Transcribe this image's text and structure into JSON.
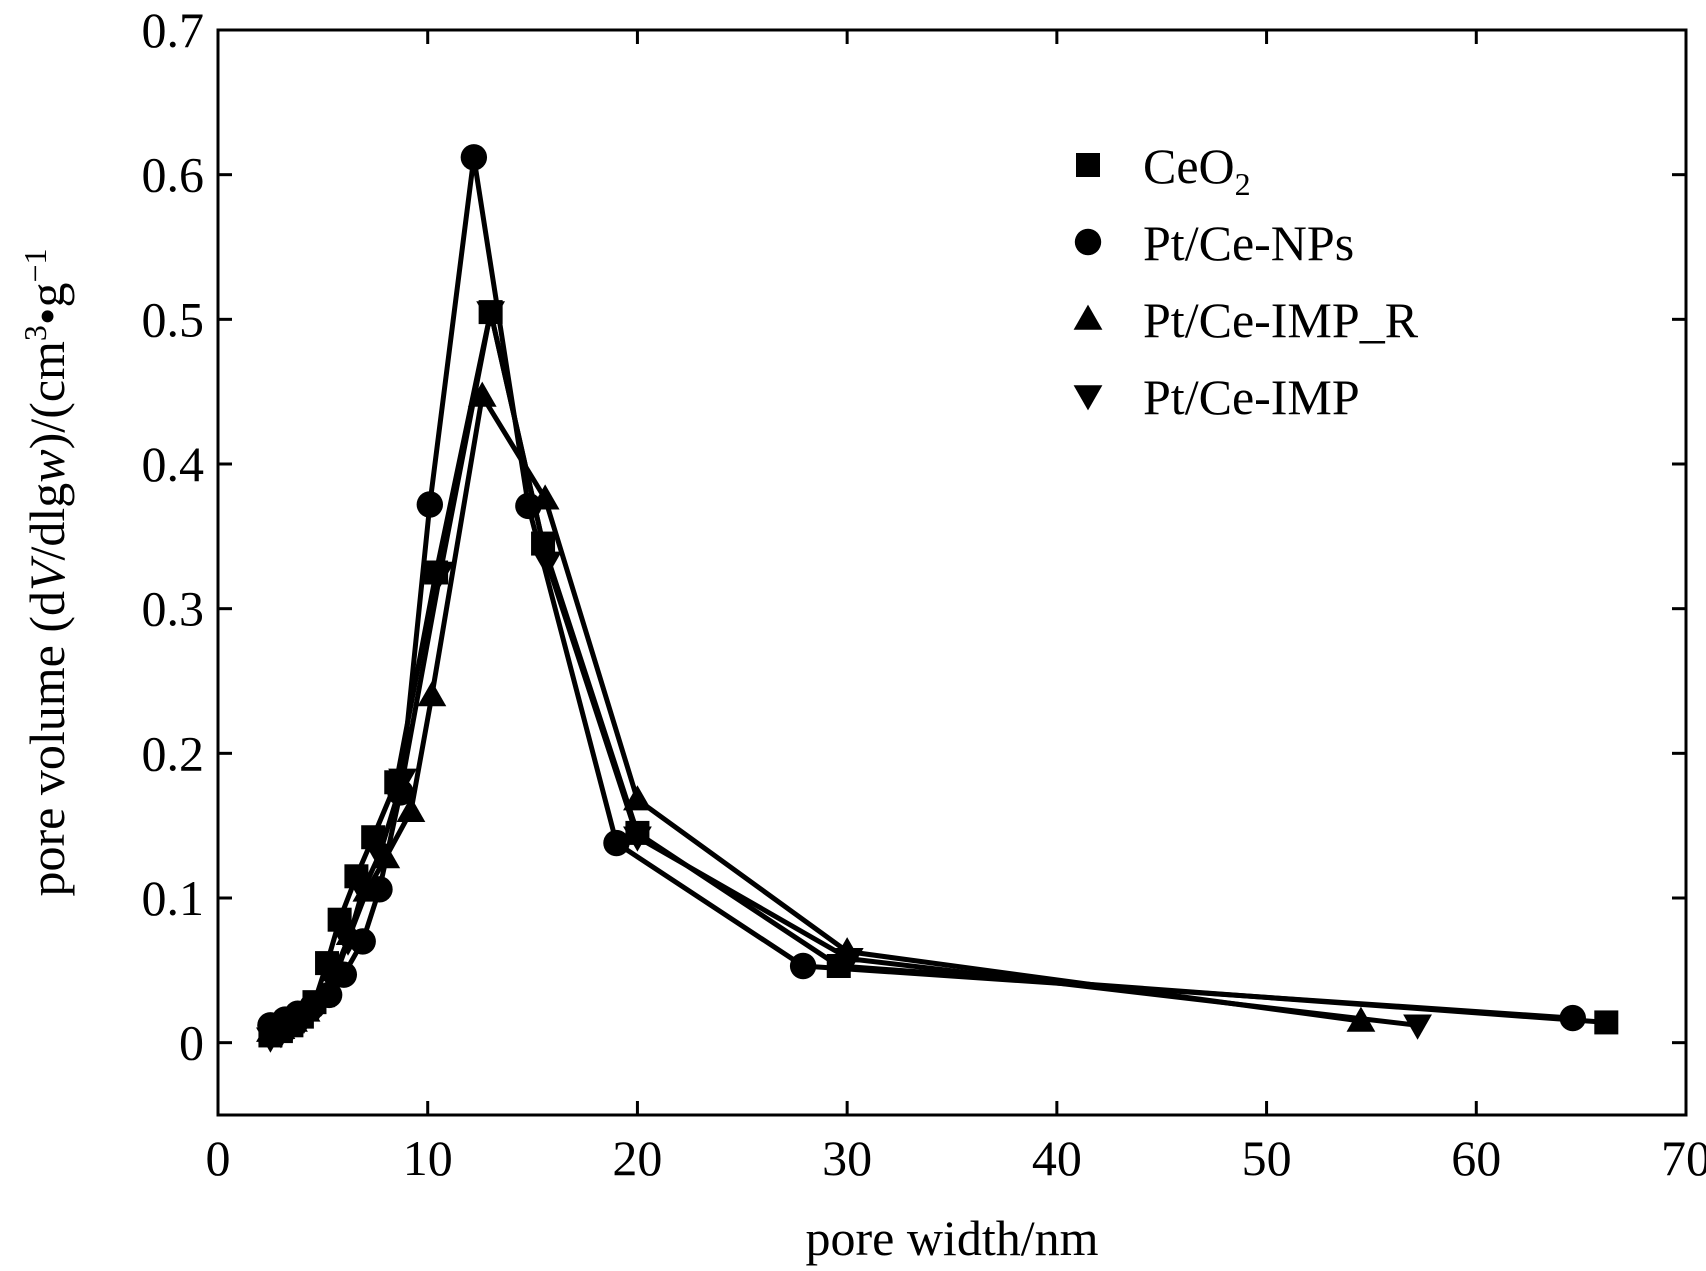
{
  "chart_data": {
    "type": "line",
    "title": "",
    "xlabel": "pore width/nm",
    "ylabel": {
      "part1": "pore volume (d",
      "var_v": "V",
      "part2": "/dlg",
      "var_w": "w",
      "part3": ")/(cm",
      "sup3": "3",
      "part4": "•g",
      "supm1": "−1"
    },
    "xlim": [
      0,
      70
    ],
    "ylim": [
      -0.05,
      0.7
    ],
    "xticks": [
      0,
      10,
      20,
      30,
      40,
      50,
      60,
      70
    ],
    "yticks": [
      0,
      0.1,
      0.2,
      0.3,
      0.4,
      0.5,
      0.6,
      0.7
    ],
    "xtick_labels": [
      "0",
      "10",
      "20",
      "30",
      "40",
      "50",
      "60",
      "70"
    ],
    "ytick_labels": [
      "0",
      "0.1",
      "0.2",
      "0.3",
      "0.4",
      "0.5",
      "0.6",
      "0.7"
    ],
    "grid": false,
    "legend_position": "top-right",
    "series": [
      {
        "name": "CeO",
        "name_sub": "2",
        "marker": "square",
        "points": [
          [
            2.5,
            0.005
          ],
          [
            3.0,
            0.008
          ],
          [
            3.5,
            0.012
          ],
          [
            4.0,
            0.018
          ],
          [
            4.6,
            0.028
          ],
          [
            5.2,
            0.055
          ],
          [
            5.8,
            0.085
          ],
          [
            6.6,
            0.115
          ],
          [
            7.4,
            0.142
          ],
          [
            8.5,
            0.18
          ],
          [
            10.4,
            0.325
          ],
          [
            13.0,
            0.505
          ],
          [
            15.5,
            0.345
          ],
          [
            20.0,
            0.145
          ],
          [
            29.6,
            0.053
          ],
          [
            66.2,
            0.014
          ]
        ]
      },
      {
        "name": "Pt/Ce-NPs",
        "marker": "circle",
        "points": [
          [
            2.5,
            0.012
          ],
          [
            3.2,
            0.016
          ],
          [
            3.8,
            0.02
          ],
          [
            4.5,
            0.025
          ],
          [
            5.3,
            0.033
          ],
          [
            6.0,
            0.047
          ],
          [
            6.9,
            0.07
          ],
          [
            7.7,
            0.106
          ],
          [
            8.7,
            0.173
          ],
          [
            10.1,
            0.372
          ],
          [
            12.2,
            0.612
          ],
          [
            14.8,
            0.371
          ],
          [
            19.0,
            0.138
          ],
          [
            27.9,
            0.053
          ],
          [
            64.6,
            0.017
          ]
        ]
      },
      {
        "name": "Pt/Ce-IMP_R",
        "marker": "triangle-up",
        "points": [
          [
            2.5,
            0.008
          ],
          [
            3.0,
            0.01
          ],
          [
            3.6,
            0.015
          ],
          [
            4.2,
            0.022
          ],
          [
            4.9,
            0.032
          ],
          [
            5.6,
            0.05
          ],
          [
            6.3,
            0.075
          ],
          [
            7.1,
            0.105
          ],
          [
            8.0,
            0.128
          ],
          [
            9.2,
            0.16
          ],
          [
            10.2,
            0.24
          ],
          [
            12.6,
            0.447
          ],
          [
            15.6,
            0.376
          ],
          [
            20.0,
            0.168
          ],
          [
            30.0,
            0.063
          ],
          [
            54.5,
            0.015
          ]
        ]
      },
      {
        "name": "Pt/Ce-IMP",
        "marker": "triangle-down",
        "points": [
          [
            2.5,
            0.003
          ],
          [
            3.0,
            0.006
          ],
          [
            3.5,
            0.01
          ],
          [
            4.1,
            0.016
          ],
          [
            4.8,
            0.026
          ],
          [
            5.5,
            0.042
          ],
          [
            6.2,
            0.07
          ],
          [
            6.9,
            0.105
          ],
          [
            7.7,
            0.13
          ],
          [
            8.8,
            0.182
          ],
          [
            10.6,
            0.325
          ],
          [
            13.0,
            0.505
          ],
          [
            15.7,
            0.332
          ],
          [
            20.0,
            0.142
          ],
          [
            30.1,
            0.058
          ],
          [
            57.2,
            0.012
          ]
        ]
      }
    ]
  }
}
